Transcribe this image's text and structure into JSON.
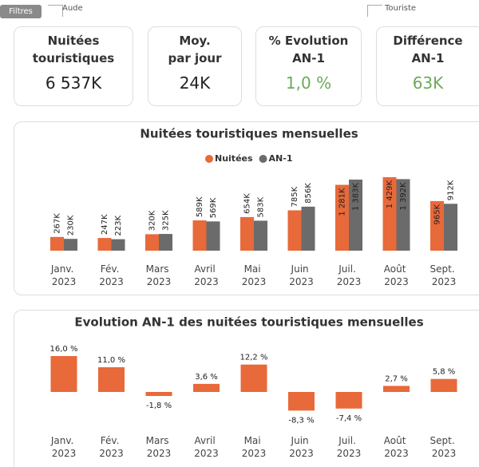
{
  "filters": {
    "button": "Filtres",
    "left": "Aude",
    "right": "Touriste"
  },
  "cards": [
    {
      "title": "Nuitées touristiques",
      "value": "6 537K"
    },
    {
      "title": "Moy. par jour",
      "value": "24K"
    },
    {
      "title": "% Evolution AN-1",
      "value": "1,0 %"
    },
    {
      "title": "Différence AN-1",
      "value": "63K"
    }
  ],
  "chart_data": [
    {
      "type": "bar",
      "title": "Nuitées touristiques mensuelles",
      "legend": "top",
      "categories": [
        "Janv. 2023",
        "Fév. 2023",
        "Mars 2023",
        "Avril 2023",
        "Mai 2023",
        "Juin 2023",
        "Juil. 2023",
        "Août 2023",
        "Sept. 2023"
      ],
      "series": [
        {
          "name": "Nuitées",
          "color": "#e8693a",
          "values": [
            267,
            247,
            320,
            589,
            654,
            785,
            1281,
            1429,
            965
          ],
          "value_labels": [
            "267K",
            "247K",
            "320K",
            "589K",
            "654K",
            "785K",
            "1 281K",
            "1 429K",
            "965K"
          ]
        },
        {
          "name": "AN-1",
          "color": "#6b6b6b",
          "values": [
            230,
            223,
            325,
            569,
            583,
            856,
            1383,
            1392,
            912
          ],
          "value_labels": [
            "230K",
            "223K",
            "325K",
            "569K",
            "583K",
            "856K",
            "1 383K",
            "1 392K",
            "912K"
          ]
        }
      ]
    },
    {
      "type": "bar",
      "title": "Evolution AN-1 des nuitées touristiques mensuelles",
      "color": "#e8693a",
      "categories": [
        "Janv. 2023",
        "Fév. 2023",
        "Mars 2023",
        "Avril 2023",
        "Mai 2023",
        "Juin 2023",
        "Juil. 2023",
        "Août 2023",
        "Sept. 2023"
      ],
      "values": [
        16.0,
        11.0,
        -1.8,
        3.6,
        12.2,
        -8.3,
        -7.4,
        2.7,
        5.8
      ],
      "value_labels": [
        "16,0 %",
        "11,0 %",
        "-1,8 %",
        "3,6 %",
        "12,2 %",
        "-8,3 %",
        "-7,4 %",
        "2,7 %",
        "5,8 %"
      ]
    }
  ]
}
